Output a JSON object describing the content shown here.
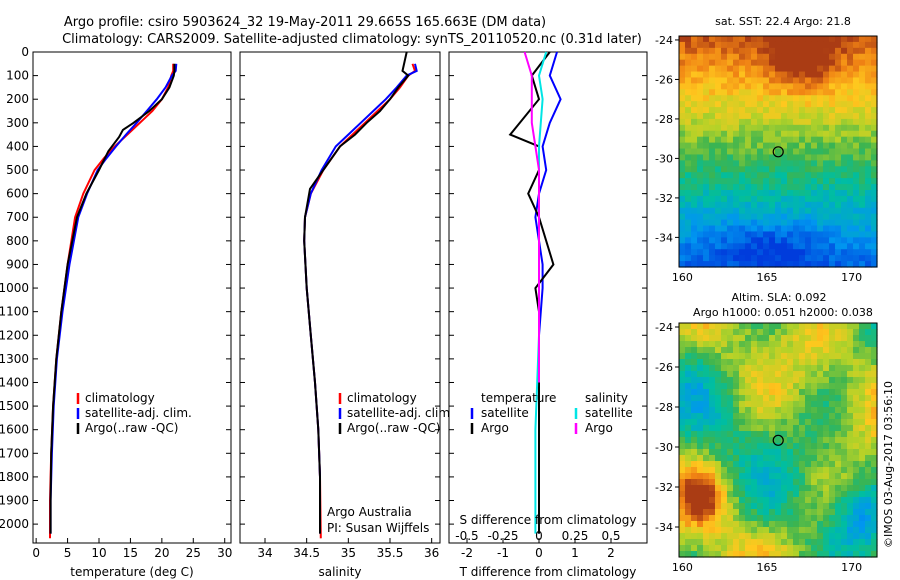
{
  "header": {
    "line1": "Argo profile: csiro 5903624_32 19-May-2011 29.665S 165.663E (DM data)",
    "line2": "Climatology: CARS2009. Satellite-adjusted climatology: synTS_20110520.nc (0.31d later)"
  },
  "footer_credit": "©IMOS 03-Aug-2017 03:56:10",
  "colors": {
    "climatology": "#ff0000",
    "satellite": "#0000ff",
    "argo": "#000000",
    "sat_s": "#00e5e5",
    "argo_s": "#ff00ff"
  },
  "chart_data": [
    {
      "id": "temperature",
      "type": "line",
      "xlabel": "temperature (deg C)",
      "ylabel": "",
      "xlim": [
        -0.5,
        31
      ],
      "ylim": [
        2080,
        0
      ],
      "xticks": [
        "0",
        "5",
        "10",
        "15",
        "20",
        "25",
        "30"
      ],
      "xtick_values": [
        0,
        5,
        10,
        15,
        20,
        25,
        30
      ],
      "yticks": [
        "0",
        "100",
        "200",
        "300",
        "400",
        "500",
        "600",
        "700",
        "800",
        "900",
        "1000",
        "1100",
        "1200",
        "1300",
        "1400",
        "1500",
        "1600",
        "1700",
        "1800",
        "1900",
        "2000"
      ],
      "ytick_values": [
        0,
        100,
        200,
        300,
        400,
        500,
        600,
        700,
        800,
        900,
        1000,
        1100,
        1200,
        1300,
        1400,
        1500,
        1600,
        1700,
        1800,
        1900,
        2000
      ],
      "legend": {
        "position": "lower-center",
        "entries": [
          "climatology",
          "satellite-adj. clim.",
          "Argo(..raw -QC)"
        ]
      },
      "series": [
        {
          "name": "climatology",
          "color_key": "climatology",
          "x": [
            21.8,
            21.8,
            21.5,
            21.0,
            20.0,
            18.5,
            16.5,
            14.5,
            12.5,
            10.8,
            9.3,
            7.5,
            6.2,
            5.0,
            4.0,
            3.2,
            2.7,
            2.4,
            2.2,
            2.2
          ],
          "y": [
            50,
            80,
            100,
            150,
            200,
            250,
            300,
            350,
            400,
            450,
            500,
            600,
            700,
            900,
            1100,
            1300,
            1500,
            1700,
            1900,
            2060
          ]
        },
        {
          "name": "satellite-adj. clim.",
          "color_key": "satellite",
          "x": [
            22.3,
            22.2,
            21.6,
            20.6,
            19.2,
            17.6,
            16.0,
            14.3,
            12.7,
            11.2,
            9.8,
            8.1,
            6.7,
            5.3,
            4.2,
            3.3,
            2.8,
            2.5,
            2.3,
            2.3
          ],
          "y": [
            50,
            80,
            100,
            150,
            200,
            250,
            300,
            350,
            400,
            450,
            500,
            600,
            700,
            900,
            1100,
            1300,
            1500,
            1700,
            1900,
            2040
          ]
        },
        {
          "name": "Argo(..raw -QC)",
          "color_key": "argo",
          "x": [
            22.0,
            22.0,
            21.9,
            21.2,
            20.0,
            18.0,
            15.5,
            13.8,
            13.2,
            11.5,
            10.0,
            8.0,
            6.5,
            5.0,
            4.0,
            3.2,
            2.7,
            2.4,
            2.3,
            2.3
          ],
          "y": [
            50,
            80,
            100,
            150,
            200,
            250,
            300,
            330,
            360,
            420,
            500,
            600,
            700,
            900,
            1100,
            1300,
            1500,
            1700,
            1900,
            2040
          ]
        }
      ]
    },
    {
      "id": "salinity",
      "type": "line",
      "xlabel": "salinity",
      "ylabel": "",
      "xlim": [
        33.7,
        36.1
      ],
      "ylim": [
        2080,
        0
      ],
      "xticks": [
        "34",
        "34.5",
        "35",
        "35.5",
        "36"
      ],
      "xtick_values": [
        34,
        34.5,
        35,
        35.5,
        36
      ],
      "legend": {
        "position": "lower-center",
        "entries": [
          "climatology",
          "satellite-adj. clim.",
          "Argo(..raw -QC)"
        ]
      },
      "annotations": [
        "Argo Australia",
        "PI: Susan Wijffels"
      ],
      "series": [
        {
          "name": "climatology",
          "color_key": "climatology",
          "x": [
            35.77,
            35.8,
            35.72,
            35.62,
            35.5,
            35.35,
            35.2,
            35.05,
            34.9,
            34.7,
            34.55,
            34.48,
            34.47,
            34.5,
            34.55,
            34.6,
            34.64,
            34.66,
            34.67
          ],
          "y": [
            50,
            80,
            100,
            150,
            200,
            250,
            300,
            350,
            400,
            500,
            600,
            700,
            800,
            1000,
            1200,
            1400,
            1600,
            1800,
            2060
          ]
        },
        {
          "name": "satellite-adj. clim.",
          "color_key": "satellite",
          "x": [
            35.8,
            35.82,
            35.7,
            35.58,
            35.45,
            35.3,
            35.15,
            35.0,
            34.85,
            34.68,
            34.55,
            34.48,
            34.47,
            34.5,
            34.55,
            34.6,
            34.64,
            34.66,
            34.66
          ],
          "y": [
            50,
            80,
            100,
            150,
            200,
            250,
            300,
            350,
            400,
            500,
            600,
            700,
            800,
            1000,
            1200,
            1400,
            1600,
            1800,
            2040
          ]
        },
        {
          "name": "Argo(..raw -QC)",
          "color_key": "argo",
          "x": [
            35.7,
            35.65,
            35.72,
            35.6,
            35.5,
            35.38,
            35.22,
            35.08,
            34.9,
            34.7,
            34.54,
            34.48,
            34.47,
            34.5,
            34.55,
            34.6,
            34.64,
            34.66,
            34.66
          ],
          "y": [
            0,
            80,
            100,
            150,
            200,
            250,
            300,
            350,
            400,
            500,
            580,
            700,
            800,
            1000,
            1200,
            1400,
            1600,
            1800,
            2040
          ]
        }
      ]
    },
    {
      "id": "difference",
      "type": "line",
      "xlabel": "T difference from climatology",
      "xlabel_top": "S difference from climatology",
      "xlim": [
        -2.5,
        3.0
      ],
      "ylim": [
        2080,
        0
      ],
      "xticks": [
        "-2",
        "-1",
        "0",
        "1",
        "2"
      ],
      "xtick_values": [
        -2,
        -1,
        0,
        1,
        2
      ],
      "s_ticks": [
        "-0.5",
        "-0.25",
        "0",
        "0.25",
        "0.5"
      ],
      "s_tick_positions": [
        -2,
        -1,
        0,
        1,
        2
      ],
      "legend": {
        "position": "lower-center",
        "groups": [
          {
            "title": "temperature",
            "entries": [
              "satellite",
              "Argo"
            ]
          },
          {
            "title": "salinity",
            "entries": [
              "satellite",
              "Argo"
            ]
          }
        ]
      },
      "series": [
        {
          "name": "satellite",
          "group": "temperature",
          "color_key": "satellite",
          "x": [
            0.5,
            0.3,
            0.6,
            0.3,
            0.1,
            0.2,
            0.0,
            -0.1,
            0.0,
            0.1,
            0.1,
            0.0,
            0.0,
            0.0
          ],
          "y": [
            0,
            100,
            200,
            300,
            400,
            500,
            600,
            700,
            800,
            900,
            1000,
            1200,
            1600,
            2040
          ]
        },
        {
          "name": "Argo",
          "group": "temperature",
          "color_key": "argo",
          "x": [
            0.3,
            -0.2,
            0.0,
            -0.8,
            0.0,
            0.0,
            -0.3,
            0.0,
            0.4,
            -0.1,
            0.0,
            0.0,
            0.0,
            0.0
          ],
          "y": [
            0,
            100,
            200,
            350,
            400,
            500,
            600,
            700,
            900,
            1000,
            1100,
            1300,
            1700,
            2040
          ]
        },
        {
          "name": "satellite",
          "group": "salinity",
          "color_key": "sat_s",
          "x": [
            0.2,
            0.0,
            0.1,
            0.0,
            0.0,
            0.0,
            0.0,
            -0.1,
            -0.1
          ],
          "y": [
            0,
            100,
            200,
            400,
            600,
            800,
            1200,
            1600,
            2040
          ]
        },
        {
          "name": "Argo",
          "group": "salinity",
          "color_key": "argo_s",
          "x": [
            -0.4,
            -0.2,
            -0.2,
            0.0,
            0.0,
            0.0,
            0.0
          ],
          "y": [
            0,
            100,
            300,
            500,
            700,
            1000,
            1400
          ]
        }
      ]
    },
    {
      "id": "sst_map",
      "type": "heatmap",
      "title": "sat. SST: 22.4 Argo: 21.8",
      "xlim": [
        159.8,
        171.5
      ],
      "ylim": [
        -35.5,
        -23.8
      ],
      "xticks": [
        "160",
        "165",
        "170"
      ],
      "xtick_values": [
        160,
        165,
        170
      ],
      "yticks": [
        "-24",
        "-26",
        "-28",
        "-30",
        "-32",
        "-34"
      ],
      "ytick_values": [
        -24,
        -26,
        -28,
        -30,
        -32,
        -34
      ],
      "marker": {
        "lon": 165.663,
        "lat": -29.665
      }
    },
    {
      "id": "sla_map",
      "type": "heatmap",
      "title": "Altim. SLA: 0.092",
      "subtitle": "Argo h1000: 0.051 h2000: 0.038",
      "xlim": [
        159.8,
        171.5
      ],
      "ylim": [
        -35.5,
        -23.8
      ],
      "xticks": [
        "160",
        "165",
        "170"
      ],
      "xtick_values": [
        160,
        165,
        170
      ],
      "yticks": [
        "-24",
        "-26",
        "-28",
        "-30",
        "-32",
        "-34"
      ],
      "ytick_values": [
        -24,
        -26,
        -28,
        -30,
        -32,
        -34
      ],
      "marker": {
        "lon": 165.663,
        "lat": -29.665
      }
    }
  ]
}
